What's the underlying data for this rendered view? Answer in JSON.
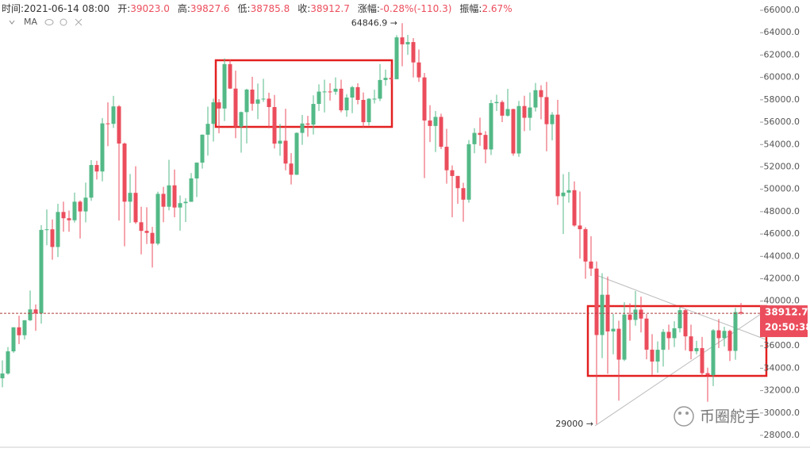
{
  "chart_data": {
    "type": "candlestick",
    "header": [
      {
        "label": "时间:",
        "value": "2021-06-14 08:00"
      },
      {
        "label": "开:",
        "value": "39023.0"
      },
      {
        "label": "高:",
        "value": "39827.6"
      },
      {
        "label": "低:",
        "value": "38785.8"
      },
      {
        "label": "收:",
        "value": "38912.7"
      },
      {
        "label": "涨幅:",
        "value": "-0.28%(-110.3)"
      },
      {
        "label": "振幅:",
        "value": "2.67%"
      }
    ],
    "indicator": "MA",
    "watermark": "币圈舵手",
    "countdown": "20:50:38",
    "annotations": [
      "64846.9 →",
      "29000 →"
    ],
    "up_color": "#53b987",
    "down_color": "#eb4d5c",
    "ylim": [
      28000,
      66000
    ],
    "yticks": [
      {
        "value": 28000,
        "label": "28000.0"
      },
      {
        "value": 30000,
        "label": "30000.0"
      },
      {
        "value": 32000,
        "label": "32000.0"
      },
      {
        "value": 34000,
        "label": "34000.0"
      },
      {
        "value": 36000,
        "label": "36000.0"
      },
      {
        "value": 38000,
        "label": "38000.0"
      },
      {
        "value": 40000,
        "label": "40000.0"
      },
      {
        "value": 42000,
        "label": "42000.0"
      },
      {
        "value": 44000,
        "label": "44000.0"
      },
      {
        "value": 46000,
        "label": "46000.0"
      },
      {
        "value": 48000,
        "label": "48000.0"
      },
      {
        "value": 50000,
        "label": "50000.0"
      },
      {
        "value": 52000,
        "label": "52000.0"
      },
      {
        "value": 54000,
        "label": "54000.0"
      },
      {
        "value": 56000,
        "label": "56000.0"
      },
      {
        "value": 58000,
        "label": "58000.0"
      },
      {
        "value": 60000,
        "label": "60000.0"
      },
      {
        "value": 62000,
        "label": "62000.0"
      },
      {
        "value": 64000,
        "label": "64000.0"
      },
      {
        "value": 66000,
        "label": "66000.0"
      }
    ],
    "open": [
      33100,
      33530,
      35510,
      37660,
      36950,
      38290,
      39260,
      38900,
      46370,
      46420,
      44840,
      47970,
      47410,
      47230,
      48890,
      48020,
      49250,
      52170,
      51590,
      55890,
      55850,
      57410,
      54090,
      48890,
      49680,
      47050,
      46280,
      46100,
      45140,
      49590,
      48440,
      50350,
      48370,
      48760,
      48880,
      50970,
      52380,
      54880,
      55850,
      57770,
      57220,
      61190,
      59000,
      55600,
      56900,
      58910,
      57650,
      58030,
      58100,
      57350,
      54080,
      54340,
      52300,
      51300,
      55040,
      55880,
      55780,
      57630,
      58730,
      58740,
      58720,
      58990,
      57060,
      58200,
      59130,
      57990,
      56000,
      58090,
      58100,
      59770,
      59960,
      59840,
      63580,
      62960,
      63160,
      61340,
      60000,
      56150,
      55660,
      56470,
      53800,
      51700,
      51190,
      50100,
      49070,
      54030,
      55040,
      54860,
      53560,
      57700,
      57800,
      56580,
      57170,
      53200,
      57440,
      56390,
      57310,
      58860,
      58240,
      55820,
      56670,
      49380,
      49700,
      49920,
      46760,
      46430,
      43540,
      42910,
      36970,
      40570,
      37290,
      37530,
      34770,
      38800,
      38320,
      39240,
      38440,
      35660,
      34600,
      35650,
      37250,
      36690,
      37570,
      39190,
      36850,
      35520,
      35800,
      33560,
      33380,
      37390,
      36690,
      37340,
      35550,
      39023
    ],
    "high": [
      34700,
      35900,
      37660,
      38700,
      38300,
      40950,
      39700,
      46800,
      48200,
      47300,
      48700,
      48900,
      48100,
      49700,
      49000,
      50600,
      52600,
      52550,
      56370,
      57770,
      58350,
      57530,
      54180,
      51370,
      52060,
      48440,
      48390,
      46640,
      49780,
      50220,
      52640,
      51770,
      49450,
      49200,
      51450,
      52400,
      54900,
      57390,
      58100,
      58060,
      61700,
      61600,
      60600,
      56940,
      58990,
      60050,
      59450,
      59880,
      58640,
      58430,
      55840,
      57200,
      53230,
      55080,
      56640,
      56560,
      58400,
      59380,
      59800,
      59490,
      60000,
      59800,
      58500,
      59250,
      59480,
      58650,
      58150,
      58900,
      61200,
      60700,
      61200,
      63780,
      64846.9,
      63800,
      63520,
      62500,
      60400,
      57520,
      57000,
      56760,
      55400,
      52130,
      51200,
      50580,
      54400,
      55460,
      56400,
      55200,
      58000,
      58450,
      57950,
      58980,
      57200,
      57900,
      58360,
      58650,
      59500,
      59300,
      59600,
      56900,
      58000,
      51350,
      51550,
      50700,
      49800,
      46600,
      45800,
      43550,
      42500,
      42200,
      38850,
      38250,
      39900,
      39800,
      40900,
      40400,
      38850,
      37050,
      36400,
      37500,
      37900,
      38200,
      39450,
      39290,
      37900,
      36450,
      36800,
      34050,
      37500,
      38400,
      37700,
      37450,
      39400,
      39827.6
    ],
    "low": [
      32300,
      33420,
      35380,
      36160,
      36570,
      38220,
      37350,
      37990,
      45000,
      43700,
      43940,
      46200,
      46200,
      47030,
      45600,
      47040,
      48970,
      50870,
      50710,
      53850,
      55480,
      47200,
      44900,
      47000,
      46900,
      44180,
      45100,
      43000,
      45000,
      47050,
      48120,
      47500,
      46300,
      47070,
      48880,
      49300,
      51850,
      53010,
      54270,
      55000,
      56100,
      58960,
      54570,
      53270,
      54100,
      57020,
      56270,
      57810,
      55450,
      53650,
      53000,
      51700,
      50430,
      51280,
      53970,
      54700,
      54900,
      57000,
      56870,
      57930,
      58450,
      56880,
      56480,
      56800,
      57600,
      55470,
      55700,
      57670,
      57880,
      59260,
      59370,
      59840,
      61000,
      62020,
      60000,
      59600,
      51000,
      54220,
      53330,
      53600,
      50500,
      47500,
      48700,
      47100,
      48800,
      53220,
      53890,
      52330,
      53060,
      57000,
      56000,
      56490,
      53000,
      52900,
      55200,
      55250,
      56950,
      56250,
      53400,
      54370,
      48600,
      46000,
      48800,
      46650,
      43800,
      42000,
      42250,
      29000,
      34900,
      33500,
      35250,
      31100,
      34650,
      36450,
      37800,
      37200,
      34800,
      33400,
      33600,
      34150,
      35650,
      35900,
      37200,
      35600,
      34800,
      35250,
      33300,
      31000,
      32400,
      35800,
      35950,
      34650,
      34760,
      38785.8
    ],
    "close": [
      33530,
      35510,
      37660,
      36950,
      38290,
      39260,
      38900,
      46370,
      46420,
      44840,
      47970,
      47410,
      47230,
      48890,
      48020,
      49250,
      52170,
      51590,
      55890,
      55850,
      57410,
      54090,
      48890,
      49680,
      47050,
      46280,
      46100,
      45140,
      49590,
      48440,
      50350,
      48370,
      48760,
      48880,
      50970,
      52380,
      54880,
      55850,
      57770,
      57220,
      61190,
      59000,
      55600,
      56900,
      58910,
      57650,
      58030,
      58100,
      57350,
      54080,
      54340,
      52300,
      51300,
      55040,
      55880,
      55780,
      57630,
      58730,
      58740,
      58720,
      58990,
      57060,
      58200,
      59130,
      57990,
      56000,
      58090,
      58100,
      59770,
      59960,
      59840,
      63580,
      62960,
      63160,
      61340,
      60000,
      56150,
      55660,
      56470,
      53800,
      51700,
      51190,
      50100,
      49070,
      54030,
      55040,
      54860,
      53560,
      57700,
      57800,
      56580,
      57170,
      53200,
      57440,
      56390,
      57310,
      58860,
      58240,
      55820,
      56670,
      49380,
      49700,
      49920,
      46760,
      46430,
      43540,
      42910,
      36970,
      40570,
      37290,
      37530,
      34770,
      38800,
      38320,
      39240,
      38440,
      35660,
      34600,
      35650,
      37250,
      36690,
      37570,
      39190,
      36850,
      35520,
      35800,
      33560,
      33380,
      37390,
      36690,
      37340,
      35550,
      39020,
      38912.7
    ]
  }
}
